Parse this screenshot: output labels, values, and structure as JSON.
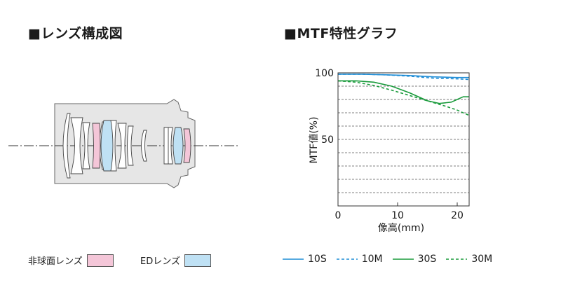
{
  "lens_section": {
    "title": "■レンズ構成図",
    "legend_aspherical": "非球面レンズ",
    "legend_ed": "EDレンズ",
    "aspherical_color": "#f4c6d8",
    "ed_color": "#bfe1f4",
    "body_color": "#e6e6e6"
  },
  "mtf_section": {
    "title": "■MTF特性グラフ"
  },
  "chart_data": {
    "type": "line",
    "xlabel": "像高(mm)",
    "ylabel": "MTF値(%)",
    "xlim": [
      0,
      22
    ],
    "ylim": [
      0,
      100
    ],
    "xticks": [
      "0",
      "10",
      "20"
    ],
    "yticks": [
      "50",
      "100"
    ],
    "grid": "horizontal dashed every 10%",
    "series": [
      {
        "name": "10S",
        "color": "#1f8dd6",
        "dash": "solid",
        "x": [
          0,
          4,
          8,
          12,
          16,
          20,
          22
        ],
        "y": [
          99,
          99,
          98.5,
          98,
          97,
          96.5,
          96.5
        ]
      },
      {
        "name": "10M",
        "color": "#1f8dd6",
        "dash": "dashed",
        "x": [
          0,
          4,
          8,
          12,
          16,
          20,
          22
        ],
        "y": [
          99,
          99,
          98.5,
          97.5,
          96,
          95.5,
          95
        ]
      },
      {
        "name": "30S",
        "color": "#1a9b3c",
        "dash": "solid",
        "x": [
          0,
          3,
          6,
          9,
          12,
          15,
          17,
          19,
          20,
          21,
          22
        ],
        "y": [
          94,
          94,
          93,
          90,
          85,
          79,
          77,
          78,
          80,
          82,
          82
        ]
      },
      {
        "name": "30M",
        "color": "#1a9b3c",
        "dash": "dashed",
        "x": [
          0,
          3,
          6,
          9,
          12,
          15,
          18,
          20,
          22
        ],
        "y": [
          94,
          93,
          90.5,
          87,
          83,
          79,
          75,
          72,
          68
        ]
      }
    ]
  }
}
